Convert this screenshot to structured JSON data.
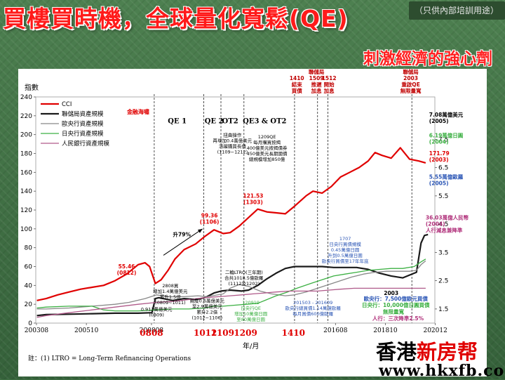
{
  "slide": {
    "title": "買樓買時機，全球量化寬鬆(QE)",
    "note": "（只供內部培訓用途）",
    "subtitle": "刺激經濟的強心劑",
    "watermark_name_black": "香港",
    "watermark_name_red": "新房帮",
    "watermark_url": "www.hkxfb.com"
  },
  "chart_data": {
    "type": "line",
    "ylabel_left": "指數",
    "xlabel": "年/月",
    "footnote": "註：(1) LTRO = Long-Term Refinancing Operations",
    "x_range": [
      2003.55,
      2020.9
    ],
    "y_left_range": [
      0,
      240
    ],
    "y_left_ticks": [
      "0",
      "20",
      "40",
      "60",
      "80",
      "100",
      "120",
      "140",
      "160",
      "180",
      "200",
      "220",
      "240"
    ],
    "y_right_ticks": [
      "1.5",
      "2.5",
      "3.5",
      "4.5",
      "5.5",
      "6.5",
      "7.5"
    ],
    "y_right_tick_values": [
      15,
      45,
      75,
      105,
      135,
      165,
      195
    ],
    "x_ticks": [
      {
        "label": "200308",
        "x": 2003.58
      },
      {
        "label": "200510",
        "x": 2005.75
      },
      {
        "label": "200808",
        "x": 2008.58
      },
      {
        "label": "201608",
        "x": 2016.58
      },
      {
        "label": "201810",
        "x": 2018.75
      },
      {
        "label": "202012",
        "x": 2020.92
      }
    ],
    "x_highlight_ticks": [
      {
        "label": "0808",
        "x": 2008.58
      },
      {
        "label": "1012",
        "x": 2010.92
      },
      {
        "label": "1109",
        "x": 2011.67
      },
      {
        "label": "1209",
        "x": 2012.67
      },
      {
        "label": "1410",
        "x": 2014.75
      }
    ],
    "legend": [
      "CCI",
      "聯儲局資產規模",
      "歐央行資產規模",
      "日央行資產規模",
      "人民銀行資產規模"
    ],
    "series": [
      {
        "name": "CCI",
        "color": "#e00000",
        "width": 2.2,
        "points": [
          [
            2003.6,
            24
          ],
          [
            2004.0,
            26
          ],
          [
            2004.5,
            30
          ],
          [
            2005.0,
            33
          ],
          [
            2005.5,
            36
          ],
          [
            2006.0,
            38
          ],
          [
            2006.5,
            40
          ],
          [
            2007.0,
            45
          ],
          [
            2007.5,
            52
          ],
          [
            2008.0,
            62
          ],
          [
            2008.3,
            64
          ],
          [
            2008.5,
            60
          ],
          [
            2008.75,
            42
          ],
          [
            2009.0,
            46
          ],
          [
            2009.3,
            56
          ],
          [
            2009.6,
            68
          ],
          [
            2010.0,
            78
          ],
          [
            2010.5,
            84
          ],
          [
            2010.9,
            92
          ],
          [
            2011.3,
            99
          ],
          [
            2011.7,
            95
          ],
          [
            2012.0,
            96
          ],
          [
            2012.4,
            103
          ],
          [
            2012.8,
            112
          ],
          [
            2013.2,
            121
          ],
          [
            2013.6,
            118
          ],
          [
            2014.0,
            117
          ],
          [
            2014.4,
            116
          ],
          [
            2014.8,
            124
          ],
          [
            2015.3,
            135
          ],
          [
            2015.6,
            140
          ],
          [
            2016.0,
            138
          ],
          [
            2016.4,
            145
          ],
          [
            2016.8,
            155
          ],
          [
            2017.2,
            160
          ],
          [
            2017.6,
            165
          ],
          [
            2018.0,
            172
          ],
          [
            2018.3,
            181
          ],
          [
            2018.6,
            178
          ],
          [
            2019.0,
            175
          ],
          [
            2019.4,
            186
          ],
          [
            2019.8,
            174
          ],
          [
            2020.2,
            172
          ],
          [
            2020.5,
            170
          ]
        ]
      },
      {
        "name": "聯儲局資產規模",
        "color": "#1a1a1a",
        "width": 2.2,
        "points": [
          [
            2003.6,
            8
          ],
          [
            2004.0,
            9
          ],
          [
            2005.0,
            9.5
          ],
          [
            2006.0,
            10
          ],
          [
            2007.0,
            10.5
          ],
          [
            2008.0,
            10.5
          ],
          [
            2008.6,
            11
          ],
          [
            2008.75,
            26
          ],
          [
            2008.9,
            27
          ],
          [
            2009.5,
            24
          ],
          [
            2010.0,
            26
          ],
          [
            2010.5,
            25
          ],
          [
            2010.9,
            27
          ],
          [
            2011.3,
            32
          ],
          [
            2011.6,
            34
          ],
          [
            2012.0,
            35
          ],
          [
            2012.5,
            34
          ],
          [
            2012.8,
            35
          ],
          [
            2013.2,
            40
          ],
          [
            2013.6,
            47
          ],
          [
            2014.0,
            53
          ],
          [
            2014.4,
            58
          ],
          [
            2014.8,
            60
          ],
          [
            2015.5,
            60
          ],
          [
            2016.0,
            60
          ],
          [
            2016.5,
            59
          ],
          [
            2017.0,
            59
          ],
          [
            2017.5,
            59
          ],
          [
            2018.0,
            57
          ],
          [
            2018.5,
            53
          ],
          [
            2019.0,
            50
          ],
          [
            2019.5,
            48
          ],
          [
            2019.8,
            51
          ],
          [
            2020.1,
            54
          ],
          [
            2020.3,
            85
          ],
          [
            2020.45,
            93
          ],
          [
            2020.6,
            94
          ]
        ]
      },
      {
        "name": "歐央行資產規模",
        "color": "#888888",
        "width": 1.3,
        "points": [
          [
            2003.6,
            15
          ],
          [
            2004.0,
            15
          ],
          [
            2005.0,
            16
          ],
          [
            2006.0,
            18
          ],
          [
            2007.0,
            20
          ],
          [
            2007.6,
            22
          ],
          [
            2008.3,
            26
          ],
          [
            2008.8,
            30
          ],
          [
            2009.3,
            28
          ],
          [
            2010.0,
            28
          ],
          [
            2010.6,
            29
          ],
          [
            2011.0,
            28
          ],
          [
            2011.7,
            31
          ],
          [
            2012.0,
            37
          ],
          [
            2012.4,
            41
          ],
          [
            2012.8,
            39
          ],
          [
            2013.3,
            34
          ],
          [
            2013.8,
            31
          ],
          [
            2014.4,
            29
          ],
          [
            2014.8,
            30
          ],
          [
            2015.3,
            33
          ],
          [
            2015.8,
            37
          ],
          [
            2016.3,
            41
          ],
          [
            2016.8,
            45
          ],
          [
            2017.3,
            49
          ],
          [
            2017.8,
            52
          ],
          [
            2018.3,
            54
          ],
          [
            2018.8,
            55
          ],
          [
            2019.3,
            55
          ],
          [
            2019.8,
            55
          ],
          [
            2020.1,
            56
          ],
          [
            2020.3,
            62
          ],
          [
            2020.5,
            66
          ]
        ]
      },
      {
        "name": "日央行資產規模",
        "color": "#3cb043",
        "width": 1.3,
        "points": [
          [
            2003.6,
            16
          ],
          [
            2004.0,
            17
          ],
          [
            2005.0,
            18
          ],
          [
            2006.0,
            18
          ],
          [
            2006.5,
            14
          ],
          [
            2007.0,
            13
          ],
          [
            2008.0,
            13
          ],
          [
            2008.8,
            14
          ],
          [
            2009.5,
            15
          ],
          [
            2010.2,
            15
          ],
          [
            2010.9,
            16
          ],
          [
            2011.3,
            18
          ],
          [
            2011.7,
            18
          ],
          [
            2012.2,
            19
          ],
          [
            2012.7,
            20
          ],
          [
            2013.2,
            21
          ],
          [
            2013.6,
            25
          ],
          [
            2014.0,
            29
          ],
          [
            2014.5,
            33
          ],
          [
            2014.9,
            37
          ],
          [
            2015.5,
            42
          ],
          [
            2016.0,
            46
          ],
          [
            2016.5,
            50
          ],
          [
            2017.0,
            52
          ],
          [
            2017.5,
            54
          ],
          [
            2018.0,
            56
          ],
          [
            2018.5,
            57
          ],
          [
            2019.0,
            58
          ],
          [
            2019.5,
            58
          ],
          [
            2020.0,
            60
          ],
          [
            2020.3,
            65
          ],
          [
            2020.5,
            68
          ]
        ]
      },
      {
        "name": "人民銀行資產規模",
        "color": "#b05a8a",
        "width": 1.3,
        "points": [
          [
            2003.6,
            6
          ],
          [
            2004.0,
            8
          ],
          [
            2005.0,
            11
          ],
          [
            2006.0,
            14
          ],
          [
            2007.0,
            17
          ],
          [
            2008.0,
            20
          ],
          [
            2008.8,
            22
          ],
          [
            2009.5,
            23
          ],
          [
            2010.2,
            25
          ],
          [
            2010.9,
            27
          ],
          [
            2011.5,
            28
          ],
          [
            2012.0,
            29
          ],
          [
            2012.5,
            30
          ],
          [
            2013.0,
            31
          ],
          [
            2013.5,
            32
          ],
          [
            2014.0,
            33
          ],
          [
            2014.6,
            34
          ],
          [
            2015.2,
            34
          ],
          [
            2015.8,
            34
          ],
          [
            2016.3,
            35
          ],
          [
            2016.8,
            36
          ],
          [
            2017.4,
            37
          ],
          [
            2018.0,
            37
          ],
          [
            2018.6,
            37
          ],
          [
            2019.2,
            37
          ],
          [
            2019.8,
            37
          ],
          [
            2020.2,
            37
          ],
          [
            2020.5,
            37
          ]
        ]
      }
    ],
    "phase_labels": [
      {
        "text": "金融海嘯",
        "x": 2008.0,
        "y": 222,
        "color": "#e00000"
      },
      {
        "text": "QE 1",
        "x": 2009.7,
        "y": 212,
        "color": "#000"
      },
      {
        "text": "QE 2",
        "x": 2011.3,
        "y": 212,
        "color": "#000"
      },
      {
        "text": "OT2",
        "x": 2012.0,
        "y": 212,
        "color": "#000"
      },
      {
        "text": "QE3 & OT2",
        "x": 2013.5,
        "y": 212,
        "color": "#000"
      }
    ],
    "vlines": [
      2008.7,
      2010.85,
      2011.6,
      2012.6,
      2014.8,
      2015.8,
      2016.25,
      2019.9
    ],
    "top_events": [
      {
        "lines": [
          "1410",
          "結束",
          "買債"
        ],
        "x": 2014.9
      },
      {
        "lines": [
          "聯儲局",
          "1509",
          "推遲",
          "加息"
        ],
        "x": 2015.75
      },
      {
        "lines": [
          "1512",
          "開始",
          "加息"
        ],
        "x": 2016.3
      },
      {
        "lines": [
          "聯儲局",
          "2003",
          "重啟QE",
          "無限量寬"
        ],
        "x": 2019.85
      }
    ],
    "annotations": [
      {
        "lines": [
          "55.46",
          "(0812)"
        ],
        "x": 2007.5,
        "y": 58,
        "color": "#e00000",
        "bold": true
      },
      {
        "lines": [
          "99.36",
          "(1106)"
        ],
        "x": 2011.1,
        "y": 112,
        "color": "#e00000",
        "bold": true
      },
      {
        "lines": [
          "121.53",
          "(1303)"
        ],
        "x": 2013.0,
        "y": 133,
        "color": "#e00000",
        "bold": true
      },
      {
        "lines": [
          "171.79",
          "(2003)"
        ],
        "x": 2020.65,
        "y": 178,
        "color": "#e00000",
        "bold": true
      },
      {
        "lines": [
          "升79%"
        ],
        "x": 2009.9,
        "y": 92,
        "color": "#000",
        "bold": true
      },
      {
        "lines": [
          "7.08萬億美元",
          "(2005)"
        ],
        "x": 2020.65,
        "y": 219,
        "color": "#000",
        "bold": true
      },
      {
        "lines": [
          "6.19萬億日圓",
          "(2004)"
        ],
        "x": 2020.65,
        "y": 197,
        "color": "#3cb043",
        "bold": true
      },
      {
        "lines": [
          "5.55萬億歐羅",
          "(2005)"
        ],
        "x": 2020.65,
        "y": 153,
        "color": "#2a55b5",
        "bold": true
      },
      {
        "lines": [
          "36.03萬億人民幣",
          "(2004)",
          "人行減息兼降準"
        ],
        "x": 2020.5,
        "y": 110,
        "color": "#b0307a",
        "bold": true
      },
      {
        "lines": [
          "2808買",
          "增加1.4萬億美元",
          "累升1.5倍",
          "(0809~1011)"
        ],
        "x": 2009.4,
        "y": 38,
        "color": "#000",
        "bold": false
      },
      {
        "lines": [
          "0.912萬億美元",
          "(0809)"
        ],
        "x": 2008.8,
        "y": 13,
        "color": "#000",
        "bold": false
      },
      {
        "lines": [
          "兩度0.6萬億美元",
          "至2.9萬億美元",
          "累升2.2倍",
          "(1012~1106)"
        ],
        "x": 2011.0,
        "y": 22,
        "color": "#000",
        "bold": false
      },
      {
        "lines": [
          "二輪LTRO(三年期)",
          "合共1018.5億歐羅",
          "(1112及1202)"
        ],
        "x": 2012.6,
        "y": 52,
        "color": "#000",
        "bold": false
      },
      {
        "lines": [
          "120919",
          "日央行QE",
          "增加10萬億日圓",
          "至80萬億日圓"
        ],
        "x": 2012.9,
        "y": 20,
        "color": "#3cb043",
        "bold": false
      },
      {
        "lines": [
          "扭曲操作",
          "再增加0.4萬億美元",
          "活躍購買長債",
          "(1109~1212)"
        ],
        "x": 2012.1,
        "y": 198,
        "color": "#000",
        "bold": false
      },
      {
        "lines": [
          "1209QE",
          "每月購買按揭",
          "400億美元按揭債券",
          "450億美元長期國債",
          "總規模增加850億"
        ],
        "x": 2013.6,
        "y": 196,
        "color": "#000",
        "bold": false
      },
      {
        "lines": [
          "1707",
          "日央行買債規模",
          "0.45萬億日圓",
          "升到0.5萬億日圓",
          "歐央行買債至17年年底"
        ],
        "x": 2017.0,
        "y": 88,
        "color": "#2a55b5",
        "bold": false
      },
      {
        "lines": [
          "201503 - 201609",
          "歐央行總買債1.14萬億歐羅",
          "每月買債600億歐羅"
        ],
        "x": 2015.6,
        "y": 20,
        "color": "#2a55b5",
        "bold": false
      },
      {
        "lines": [
          "2003"
        ],
        "x": 2019.0,
        "y": 30,
        "color": "#000",
        "bold": true
      },
      {
        "lines": [
          "歐央行：7,500億歐元買債"
        ],
        "x": 2019.2,
        "y": 24,
        "color": "#2a55b5",
        "bold": true
      },
      {
        "lines": [
          "日央行：10,000億日圓買債"
        ],
        "x": 2019.2,
        "y": 17,
        "color": "#3cb043",
        "bold": true
      },
      {
        "lines": [
          "無限量寬"
        ],
        "x": 2019.1,
        "y": 10,
        "color": "#3cb043",
        "bold": true
      },
      {
        "lines": [
          "人行：三次降準2.5%"
        ],
        "x": 2019.3,
        "y": 3,
        "color": "#b0307a",
        "bold": true
      }
    ],
    "arrow": {
      "from": [
        2009.1,
        72
      ],
      "to": [
        2010.8,
        100
      ]
    }
  }
}
